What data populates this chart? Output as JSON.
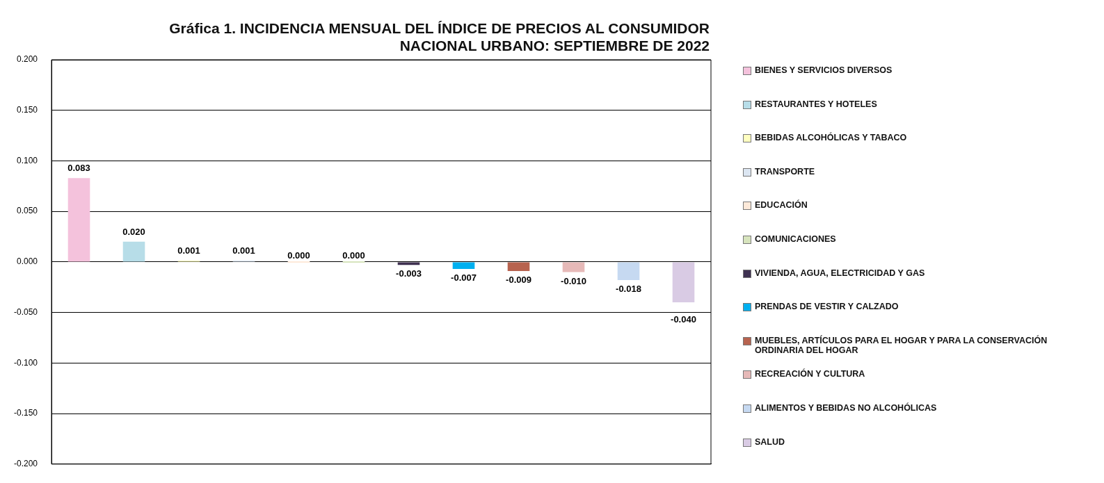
{
  "chart_data": {
    "type": "bar",
    "title": "Gráfica 1.  INCIDENCIA MENSUAL  DEL ÍNDICE DE PRECIOS AL CONSUMIDOR\nNACIONAL URBANO: SEPTIEMBRE DE 2022",
    "categories": [
      null
    ],
    "series": [
      {
        "name": "BIENES Y SERVICIOS DIVERSOS",
        "color": "#f4c2dc",
        "values": [
          0.083
        ],
        "value_labels": [
          "0.083"
        ]
      },
      {
        "name": "RESTAURANTES Y HOTELES",
        "color": "#b7dde8",
        "values": [
          0.02
        ],
        "value_labels": [
          "0.020"
        ]
      },
      {
        "name": "BEBIDAS ALCOHÓLICAS Y TABACO",
        "color": "#ffffc0",
        "values": [
          0.001
        ],
        "value_labels": [
          "0.001"
        ]
      },
      {
        "name": "TRANSPORTE",
        "color": "#dce6f2",
        "values": [
          0.001
        ],
        "value_labels": [
          "0.001"
        ]
      },
      {
        "name": "EDUCACIÓN",
        "color": "#fde9d9",
        "values": [
          0.0
        ],
        "value_labels": [
          "0.000"
        ]
      },
      {
        "name": "COMUNICACIONES",
        "color": "#d7e4bd",
        "values": [
          0.0
        ],
        "value_labels": [
          "0.000"
        ]
      },
      {
        "name": "VIVIENDA, AGUA, ELECTRICIDAD Y GAS",
        "color": "#3f3151",
        "values": [
          -0.003
        ],
        "value_labels": [
          "-0.003"
        ]
      },
      {
        "name": "PRENDAS DE VESTIR Y CALZADO",
        "color": "#00b0f0",
        "values": [
          -0.007
        ],
        "value_labels": [
          "-0.007"
        ]
      },
      {
        "name": "MUEBLES, ARTÍCULOS PARA EL HOGAR Y PARA LA CONSERVACIÓN ORDINARIA DEL HOGAR",
        "color": "#b7634f",
        "values": [
          -0.009
        ],
        "value_labels": [
          "-0.009"
        ]
      },
      {
        "name": "RECREACIÓN Y CULTURA",
        "color": "#e6b9b8",
        "values": [
          -0.01
        ],
        "value_labels": [
          "-0.010"
        ]
      },
      {
        "name": "ALIMENTOS Y BEBIDAS NO ALCOHÓLICAS",
        "color": "#c6d9f1",
        "values": [
          -0.018
        ],
        "value_labels": [
          "-0.018"
        ]
      },
      {
        "name": "SALUD",
        "color": "#d9cbe4",
        "values": [
          -0.04
        ],
        "value_labels": [
          "-0.040"
        ]
      }
    ],
    "ylim": [
      -0.2,
      0.2
    ],
    "yticks": [
      {
        "value": -0.2,
        "label": "-0.200"
      },
      {
        "value": -0.15,
        "label": "-0.150"
      },
      {
        "value": -0.1,
        "label": "-0.100"
      },
      {
        "value": -0.05,
        "label": "-0.050"
      },
      {
        "value": 0,
        "label": "0.000"
      },
      {
        "value": 0.05,
        "label": "0.050"
      },
      {
        "value": 0.1,
        "label": "0.100"
      },
      {
        "value": 0.15,
        "label": "0.150"
      },
      {
        "value": 0.2,
        "label": "0.200"
      }
    ],
    "grid": "y",
    "legend": "right"
  }
}
